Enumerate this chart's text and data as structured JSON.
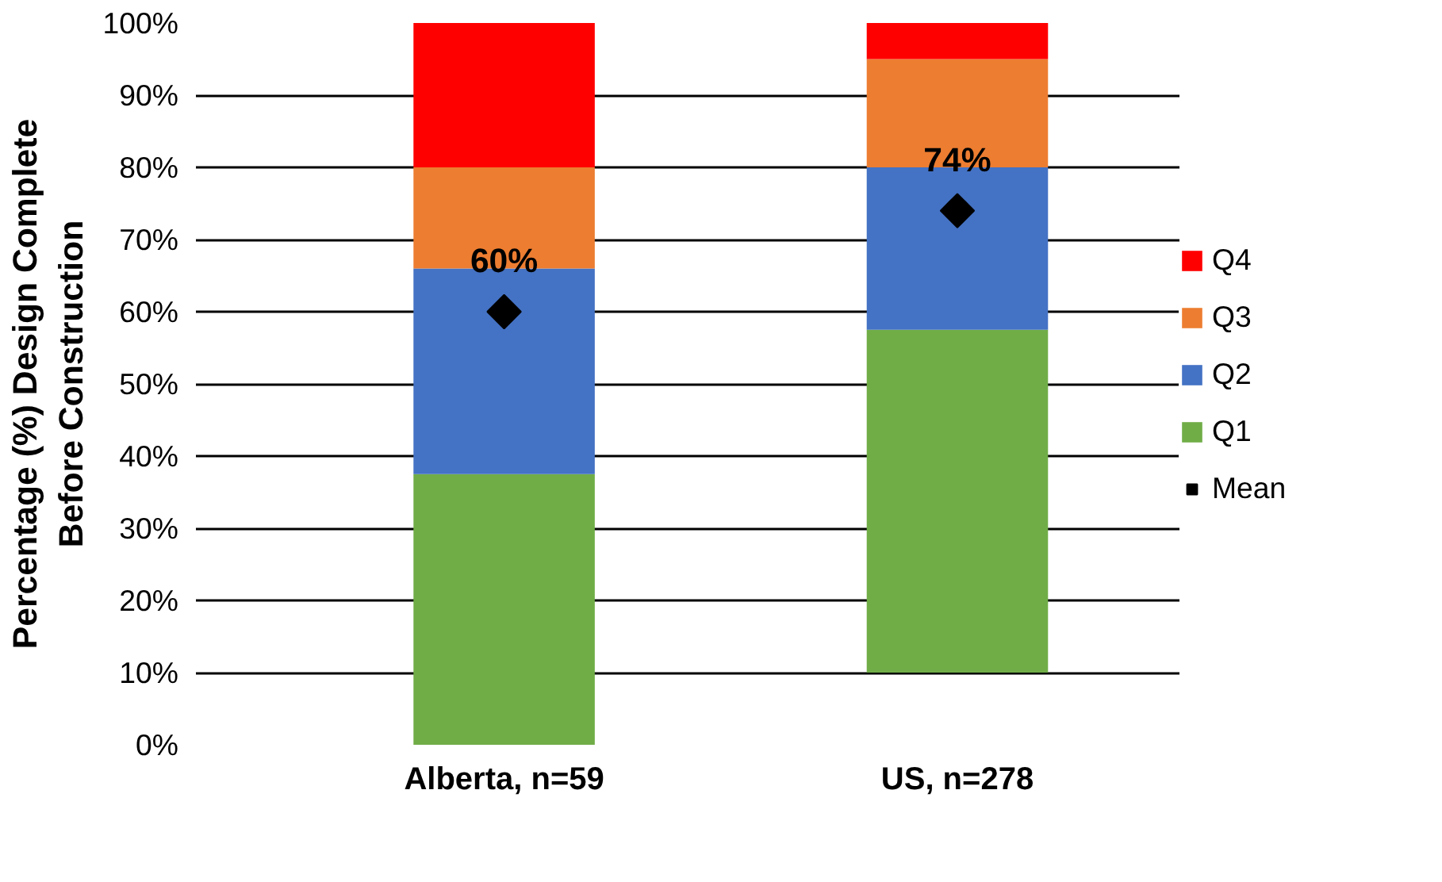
{
  "chart_data": {
    "type": "bar",
    "stacked": true,
    "ylabel": "Percentage (%) Design Complete\nBefore Construction",
    "categories": [
      "Alberta, n=59",
      "US, n=278"
    ],
    "series": [
      {
        "name": "Q1",
        "color": "#70ad47",
        "base": [
          0,
          10
        ],
        "values": [
          37.5,
          47.5
        ]
      },
      {
        "name": "Q2",
        "color": "#4472c4",
        "values": [
          28.5,
          22.5
        ]
      },
      {
        "name": "Q3",
        "color": "#ed7d31",
        "values": [
          14,
          15
        ]
      },
      {
        "name": "Q4",
        "color": "#ff0000",
        "values": [
          20,
          5
        ]
      },
      {
        "name": "Mean",
        "type": "scatter",
        "marker": "diamond",
        "color": "#000000",
        "values": [
          60,
          74
        ],
        "value_labels": [
          "60%",
          "74%"
        ]
      }
    ],
    "ylim": [
      0,
      100
    ],
    "yticks": [
      {
        "value": 0,
        "label": "0%"
      },
      {
        "value": 10,
        "label": "10%"
      },
      {
        "value": 20,
        "label": "20%"
      },
      {
        "value": 30,
        "label": "30%"
      },
      {
        "value": 40,
        "label": "40%"
      },
      {
        "value": 50,
        "label": "50%"
      },
      {
        "value": 60,
        "label": "60%"
      },
      {
        "value": 70,
        "label": "70%"
      },
      {
        "value": 80,
        "label": "80%"
      },
      {
        "value": 90,
        "label": "90%"
      },
      {
        "value": 100,
        "label": "100%"
      }
    ],
    "grid": "y",
    "legend": "right"
  }
}
